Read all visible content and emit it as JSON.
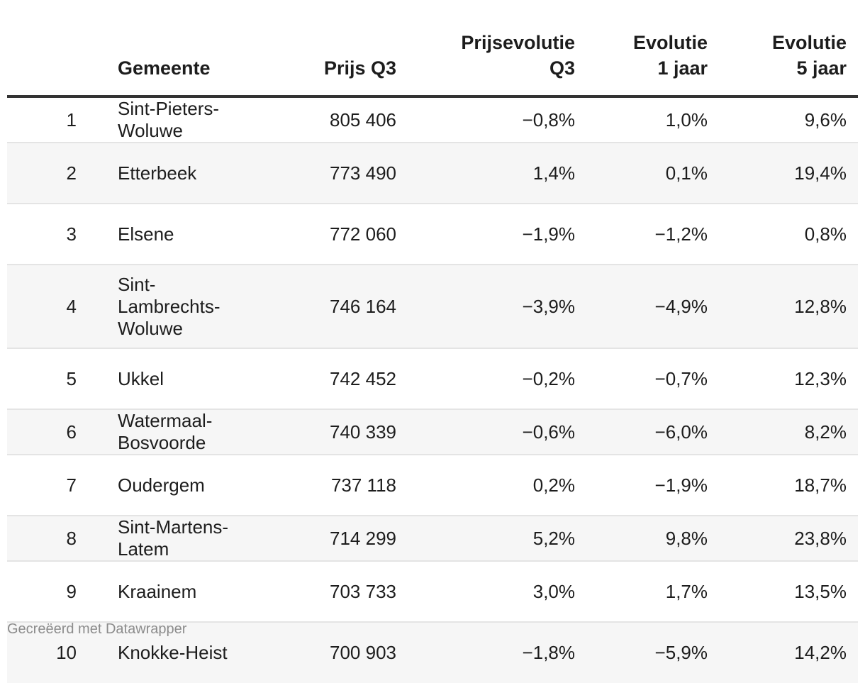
{
  "chart_data": {
    "type": "table",
    "columns": [
      "",
      "Gemeente",
      "Prijs Q3",
      "Prijsevolutie\nQ3",
      "Evolutie\n1 jaar",
      "Evolutie\n5 jaar"
    ],
    "rows": [
      {
        "rank": "1",
        "gemeente": "Sint-Pieters-\nWoluwe",
        "prijs": "805 406",
        "evolutie_q3": "−0,8%",
        "evolutie_1j": "1,0%",
        "evolutie_5j": "9,6%"
      },
      {
        "rank": "2",
        "gemeente": "Etterbeek",
        "prijs": "773 490",
        "evolutie_q3": "1,4%",
        "evolutie_1j": "0,1%",
        "evolutie_5j": "19,4%"
      },
      {
        "rank": "3",
        "gemeente": "Elsene",
        "prijs": "772 060",
        "evolutie_q3": "−1,9%",
        "evolutie_1j": "−1,2%",
        "evolutie_5j": "0,8%"
      },
      {
        "rank": "4",
        "gemeente": "Sint-\nLambrechts-\nWoluwe",
        "prijs": "746 164",
        "evolutie_q3": "−3,9%",
        "evolutie_1j": "−4,9%",
        "evolutie_5j": "12,8%"
      },
      {
        "rank": "5",
        "gemeente": "Ukkel",
        "prijs": "742 452",
        "evolutie_q3": "−0,2%",
        "evolutie_1j": "−0,7%",
        "evolutie_5j": "12,3%"
      },
      {
        "rank": "6",
        "gemeente": "Watermaal-\nBosvoorde",
        "prijs": "740 339",
        "evolutie_q3": "−0,6%",
        "evolutie_1j": "−6,0%",
        "evolutie_5j": "8,2%"
      },
      {
        "rank": "7",
        "gemeente": "Oudergem",
        "prijs": "737 118",
        "evolutie_q3": "0,2%",
        "evolutie_1j": "−1,9%",
        "evolutie_5j": "18,7%"
      },
      {
        "rank": "8",
        "gemeente": "Sint-Martens-\nLatem",
        "prijs": "714 299",
        "evolutie_q3": "5,2%",
        "evolutie_1j": "9,8%",
        "evolutie_5j": "23,8%"
      },
      {
        "rank": "9",
        "gemeente": "Kraainem",
        "prijs": "703 733",
        "evolutie_q3": "3,0%",
        "evolutie_1j": "1,7%",
        "evolutie_5j": "13,5%"
      },
      {
        "rank": "10",
        "gemeente": "Knokke-Heist",
        "prijs": "700 903",
        "evolutie_q3": "−1,8%",
        "evolutie_1j": "−5,9%",
        "evolutie_5j": "14,2%"
      }
    ]
  },
  "footer": "Gecreëerd met Datawrapper",
  "colors": {
    "header_rule": "#333333",
    "row_divider": "#e4e4e4",
    "stripe": "#f6f6f6",
    "footer_text": "#8c8c8c"
  }
}
